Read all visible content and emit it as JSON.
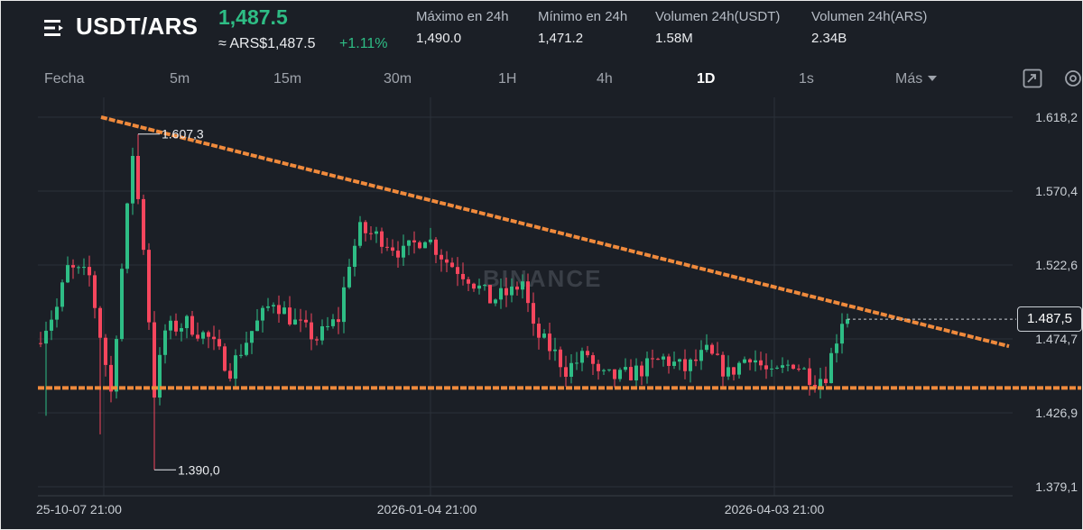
{
  "header": {
    "menu_icon": "menu-icon",
    "pair": "USDT/ARS",
    "last_price": "1,487.5",
    "fiat_price": "≈ ARS$1,487.5",
    "change_pct": "+1.11%",
    "stats": [
      {
        "label": "Máximo en 24h",
        "value": "1,490.0"
      },
      {
        "label": "Mínimo en 24h",
        "value": "1,471.2"
      },
      {
        "label": "Volumen 24h(USDT)",
        "value": "1.58M"
      },
      {
        "label": "Volumen 24h(ARS)",
        "value": "2.34B"
      }
    ]
  },
  "tabs": {
    "items": [
      "Fecha",
      "5m",
      "15m",
      "30m",
      "1H",
      "4h",
      "1D",
      "1s",
      "Más"
    ],
    "active": "1D",
    "fullscreen_icon": "fullscreen-icon",
    "settings_icon": "settings-icon"
  },
  "colors": {
    "background": "#1b1f26",
    "up": "#2ebd85",
    "down": "#f6465d",
    "trendline": "#f08a3c"
  },
  "chart_data": {
    "type": "candlestick",
    "y_ticks": [
      "1.618,2",
      "1.570,4",
      "1.522,6",
      "1.474,7",
      "1.426,9",
      "1.379,1"
    ],
    "x_ticks": [
      "25-10-07 21:00",
      "2026-01-04 21:00",
      "2026-04-03 21:00"
    ],
    "ylim": [
      1379.1,
      1618.2
    ],
    "high_label": "1.607,3",
    "low_label": "1.390,0",
    "current_price_label": "1.487,5",
    "watermark": "BINANCE",
    "grid": true,
    "candle_count": 150,
    "trendlines": [
      {
        "name": "descending resistance",
        "from": [
          0,
          1618.2
        ],
        "to": [
          150,
          1470.0
        ]
      },
      {
        "name": "horizontal support",
        "value": 1443.0
      }
    ]
  }
}
